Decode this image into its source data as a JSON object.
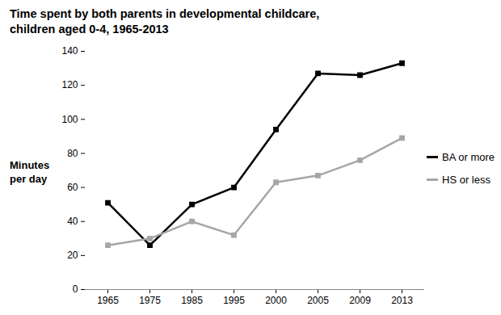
{
  "chart_data": {
    "type": "line",
    "title": "Time spent by both parents in developmental childcare, children aged 0-4, 1965-2013",
    "y_label": "Minutes per day",
    "categories": [
      "1965",
      "1975",
      "1985",
      "1995",
      "2000",
      "2005",
      "2009",
      "2013"
    ],
    "series": [
      {
        "name": "BA or more",
        "color": "#000000",
        "marker": "square",
        "values": [
          51,
          26,
          50,
          60,
          94,
          127,
          126,
          133
        ]
      },
      {
        "name": "HS or less",
        "color": "#a6a6a6",
        "marker": "square",
        "values": [
          26,
          30,
          40,
          32,
          63,
          67,
          76,
          89
        ]
      }
    ],
    "ylim": [
      0,
      140
    ],
    "yticks": [
      0,
      20,
      40,
      60,
      80,
      100,
      120,
      140
    ],
    "grid": false,
    "legend": "right"
  }
}
